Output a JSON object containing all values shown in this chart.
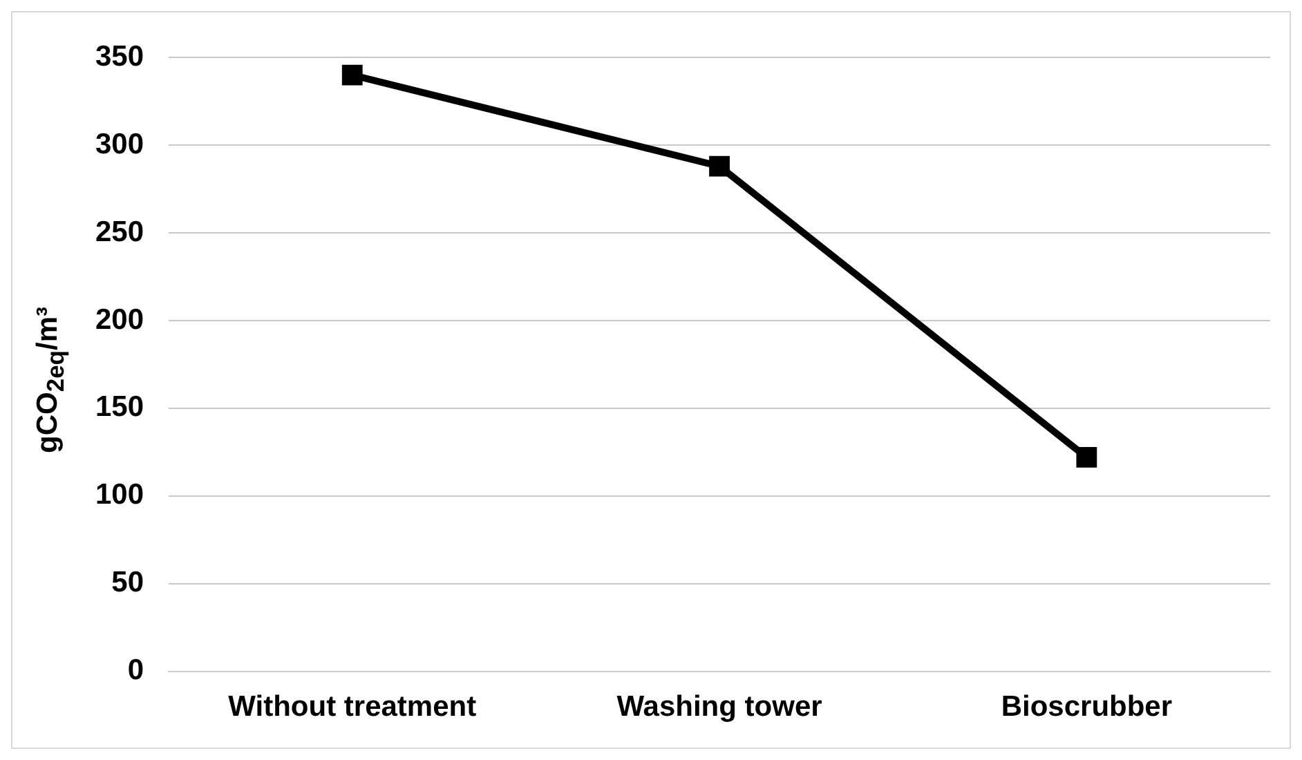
{
  "chart_data": {
    "type": "line",
    "ylabel": "gCO$_{2eq}$/m³",
    "categories": [
      "Without treatment",
      "Washing tower",
      "Bioscrubber"
    ],
    "series": [
      {
        "color": "#000000",
        "values": [
          340,
          288,
          122
        ]
      }
    ],
    "ylim": [
      0,
      350
    ],
    "yticks": [
      0,
      50,
      100,
      150,
      200,
      250,
      300,
      350
    ],
    "grid": "y",
    "legend": false,
    "marker": "square",
    "line_style": "solid"
  }
}
